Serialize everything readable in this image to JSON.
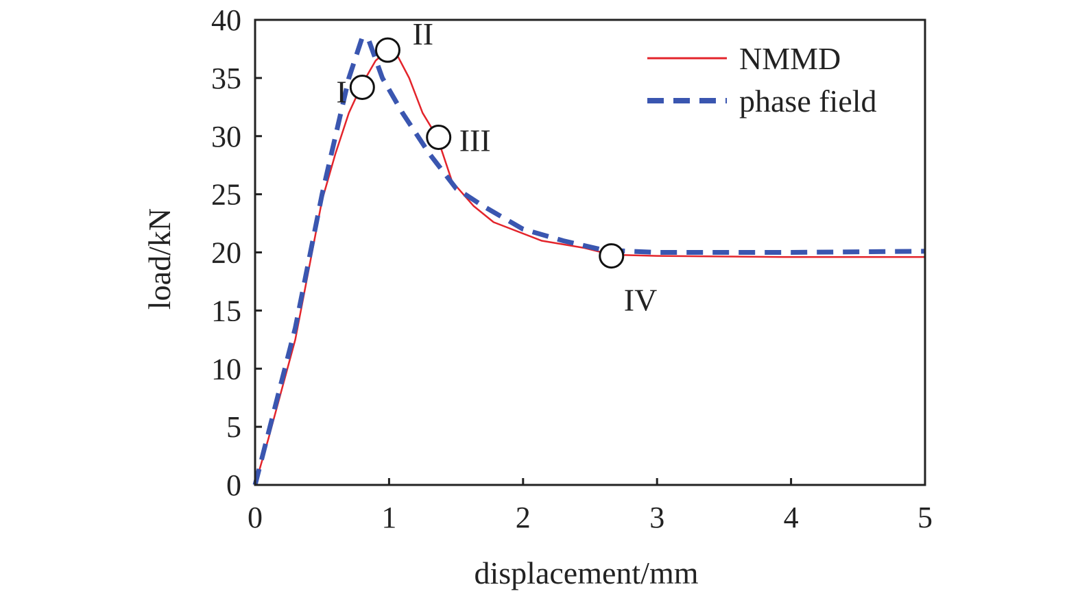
{
  "chart_data": {
    "type": "line",
    "title": "",
    "xlabel": "displacement/mm",
    "ylabel": "load/kN",
    "xlim": [
      0,
      5
    ],
    "ylim": [
      0,
      40
    ],
    "xticks": [
      0,
      1,
      2,
      3,
      4,
      5
    ],
    "yticks": [
      0,
      5,
      10,
      15,
      20,
      25,
      30,
      35,
      40
    ],
    "grid": false,
    "legend_position": "top-right",
    "series": [
      {
        "name": "NMMD",
        "color": "#e3242b",
        "style": "solid",
        "x": [
          0,
          0.1,
          0.3,
          0.5,
          0.6,
          0.7,
          0.8,
          0.9,
          1.0,
          1.05,
          1.15,
          1.25,
          1.36,
          1.47,
          1.63,
          1.78,
          2.14,
          2.45,
          2.66,
          3.0,
          4.0,
          5.0
        ],
        "y": [
          0,
          4,
          12.5,
          24.5,
          28.5,
          32,
          34.5,
          36.5,
          37.5,
          37.2,
          35,
          32,
          29.9,
          26.1,
          24,
          22.6,
          21,
          20.4,
          19.8,
          19.7,
          19.6,
          19.6
        ]
      },
      {
        "name": "phase field",
        "color": "#3a56b0",
        "style": "dashed",
        "x": [
          0,
          0.1,
          0.3,
          0.5,
          0.6,
          0.7,
          0.8,
          0.85,
          0.95,
          1.1,
          1.3,
          1.5,
          1.7,
          2.0,
          2.3,
          2.6,
          3.0,
          4.0,
          5.0
        ],
        "y": [
          0,
          4.5,
          13.5,
          25,
          30,
          35,
          38.5,
          38.2,
          35,
          32,
          28.5,
          25.5,
          24,
          22,
          21,
          20.2,
          20,
          20,
          20.1
        ]
      }
    ],
    "annotations": [
      {
        "label": "I",
        "x": 0.8,
        "y": 34.2
      },
      {
        "label": "II",
        "x": 0.99,
        "y": 37.4
      },
      {
        "label": "III",
        "x": 1.37,
        "y": 29.9
      },
      {
        "label": "IV",
        "x": 2.66,
        "y": 19.7
      }
    ]
  }
}
